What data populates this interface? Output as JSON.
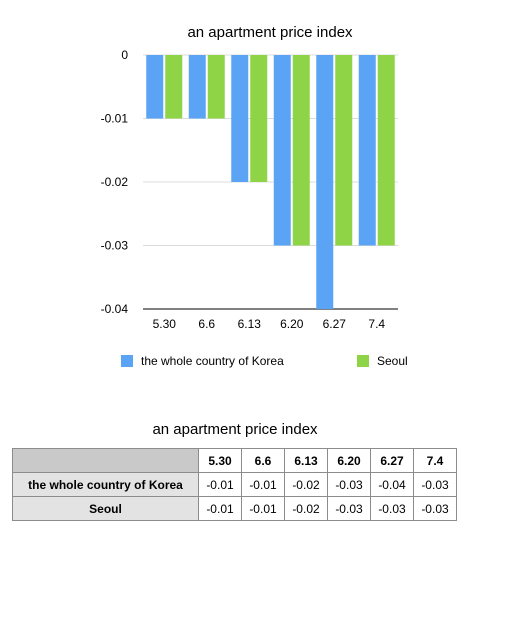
{
  "chart_data": {
    "type": "bar",
    "title": "an apartment price index",
    "categories": [
      "5.30",
      "6.6",
      "6.13",
      "6.20",
      "6.27",
      "7.4"
    ],
    "series": [
      {
        "name": "the whole country of Korea",
        "color": "#5aa3f5",
        "values": [
          -0.01,
          -0.01,
          -0.02,
          -0.03,
          -0.04,
          -0.03
        ]
      },
      {
        "name": "Seoul",
        "color": "#8fd347",
        "values": [
          -0.01,
          -0.01,
          -0.02,
          -0.03,
          -0.03,
          -0.03
        ]
      }
    ],
    "ylim": [
      -0.04,
      0
    ],
    "yticks": [
      "0",
      "-0.01",
      "-0.02",
      "-0.03",
      "-0.04"
    ],
    "grid": true,
    "legend": "bottom"
  },
  "table": {
    "title": "an apartment price index",
    "columns": [
      "5.30",
      "6.6",
      "6.13",
      "6.20",
      "6.27",
      "7.4"
    ],
    "rows": [
      {
        "label": "the whole country of Korea",
        "values": [
          "-0.01",
          "-0.01",
          "-0.02",
          "-0.03",
          "-0.04",
          "-0.03"
        ]
      },
      {
        "label": "Seoul",
        "values": [
          "-0.01",
          "-0.01",
          "-0.02",
          "-0.03",
          "-0.03",
          "-0.03"
        ]
      }
    ]
  }
}
